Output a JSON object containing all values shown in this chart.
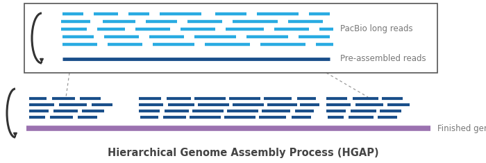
{
  "bg_color": "#ffffff",
  "title": "Hierarchical Genome Assembly Process (HGAP)",
  "title_fontsize": 10.5,
  "title_color": "#444444",
  "pacbio_color": "#29abe2",
  "preassembled_color": "#1a4f8a",
  "finished_genome_color": "#9b72b0",
  "label_color": "#777777",
  "label_pacbio": "PacBio long reads",
  "label_preassembled": "Pre-assembled reads",
  "label_finished": "Finished genome",
  "box_edge_color": "#555555",
  "brace_color": "#333333",
  "dash_color": "#999999"
}
